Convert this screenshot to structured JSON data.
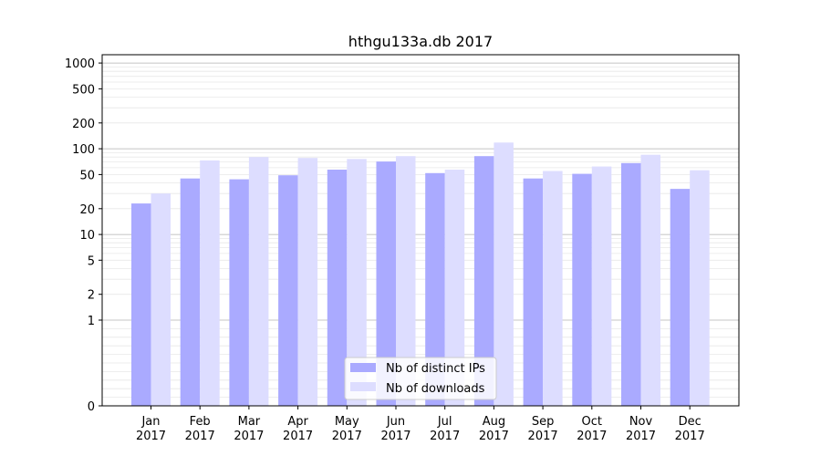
{
  "chart_data": {
    "type": "bar",
    "title": "hthgu133a.db 2017",
    "xlabel": "",
    "ylabel": "",
    "y_scale": "symlog",
    "ylim": [
      0,
      1250
    ],
    "y_ticks": [
      0,
      1,
      2,
      5,
      10,
      20,
      50,
      100,
      200,
      500,
      1000
    ],
    "y_tick_labels": [
      "0",
      "1",
      "2",
      "5",
      "10",
      "20",
      "50",
      "100",
      "200",
      "500",
      "1000"
    ],
    "categories": [
      "Jan\n2017",
      "Feb\n2017",
      "Mar\n2017",
      "Apr\n2017",
      "May\n2017",
      "Jun\n2017",
      "Jul\n2017",
      "Aug\n2017",
      "Sep\n2017",
      "Oct\n2017",
      "Nov\n2017",
      "Dec\n2017"
    ],
    "series": [
      {
        "name": "Nb of distinct IPs",
        "color": "#aaaaff",
        "values": [
          23,
          45,
          44,
          49,
          57,
          71,
          52,
          82,
          45,
          51,
          68,
          34
        ]
      },
      {
        "name": "Nb of downloads",
        "color": "#ddddff",
        "values": [
          30,
          73,
          80,
          78,
          76,
          82,
          57,
          118,
          55,
          62,
          85,
          56
        ]
      }
    ],
    "grid": true,
    "legend_position": "lower center"
  }
}
